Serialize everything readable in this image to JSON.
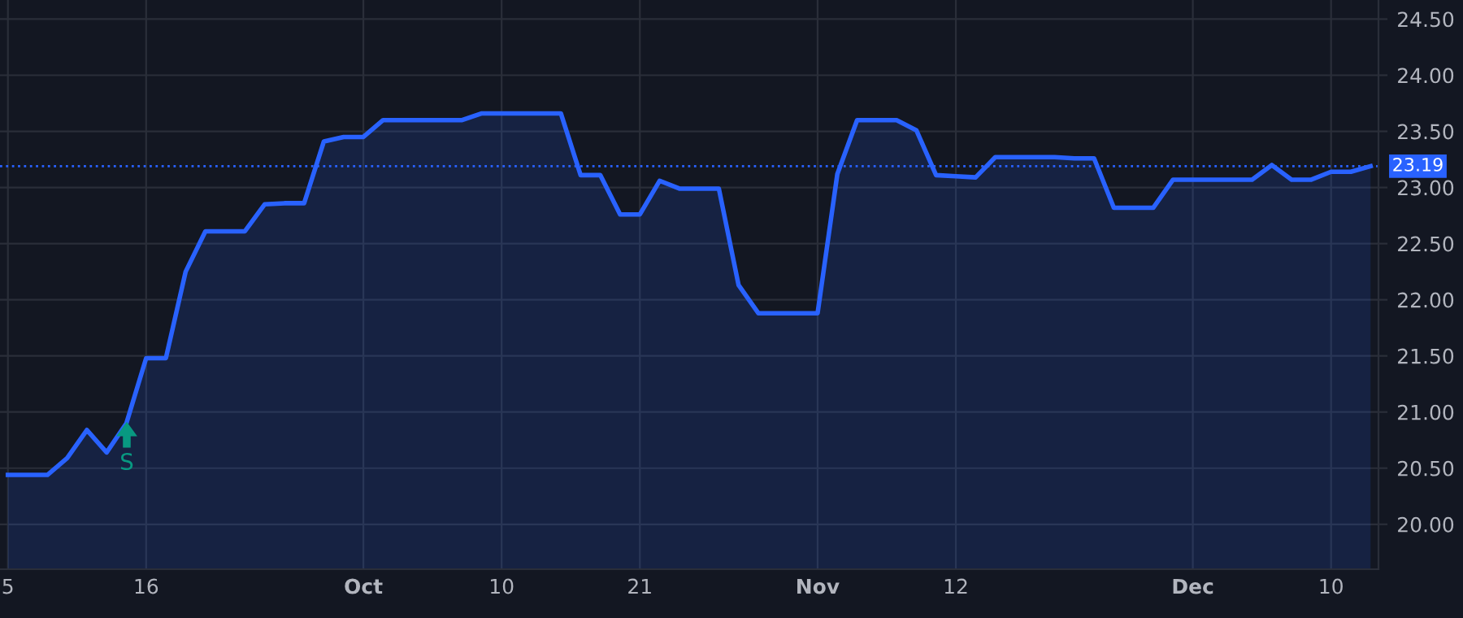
{
  "chart_data": {
    "type": "area",
    "categories": [
      "5",
      null,
      null,
      null,
      null,
      null,
      null,
      "16",
      null,
      null,
      null,
      null,
      null,
      null,
      null,
      null,
      null,
      null,
      "Oct",
      null,
      null,
      null,
      null,
      null,
      null,
      "10",
      null,
      null,
      null,
      null,
      null,
      null,
      "21",
      null,
      null,
      null,
      null,
      null,
      null,
      null,
      null,
      "Nov",
      null,
      null,
      null,
      null,
      null,
      null,
      "12",
      null,
      null,
      null,
      null,
      null,
      null,
      null,
      null,
      null,
      null,
      null,
      "Dec",
      null,
      null,
      null,
      null,
      null,
      null,
      "10",
      null,
      null
    ],
    "series": [
      {
        "color": "#2962ff",
        "values": [
          20.44,
          20.44,
          20.44,
          20.59,
          20.84,
          20.64,
          20.9,
          21.48,
          21.48,
          22.25,
          22.61,
          22.61,
          22.61,
          22.85,
          22.86,
          22.86,
          23.41,
          23.45,
          23.45,
          23.6,
          23.6,
          23.6,
          23.6,
          23.6,
          23.66,
          23.66,
          23.66,
          23.66,
          23.66,
          23.11,
          23.11,
          22.76,
          22.76,
          23.06,
          22.99,
          22.99,
          22.99,
          22.13,
          21.88,
          21.88,
          21.88,
          21.88,
          23.12,
          23.6,
          23.6,
          23.6,
          23.51,
          23.11,
          23.1,
          23.09,
          23.27,
          23.27,
          23.27,
          23.27,
          23.26,
          23.26,
          22.82,
          22.82,
          22.82,
          23.07,
          23.07,
          23.07,
          23.07,
          23.07,
          23.2,
          23.07,
          23.07,
          23.14,
          23.14,
          23.19
        ]
      }
    ],
    "ylim": [
      19.6,
      24.67
    ],
    "yticks": [
      {
        "value": 20,
        "label": "20.00"
      },
      {
        "value": 20.5,
        "label": "20.50"
      },
      {
        "value": 21,
        "label": "21.00"
      },
      {
        "value": 21.5,
        "label": "21.50"
      },
      {
        "value": 22,
        "label": "22.00"
      },
      {
        "value": 22.5,
        "label": "22.50"
      },
      {
        "value": 23,
        "label": "23.00"
      },
      {
        "value": 23.5,
        "label": "23.50"
      },
      {
        "value": 24,
        "label": "24.00"
      },
      {
        "value": 24.5,
        "label": "24.50"
      }
    ],
    "ref_lines": [
      {
        "axis": "y",
        "value": 23.19,
        "label": "23.19",
        "color": "#2962ff",
        "line_style": "dotted"
      }
    ],
    "annotations": [
      "S"
    ],
    "grid": true,
    "legend": false
  }
}
